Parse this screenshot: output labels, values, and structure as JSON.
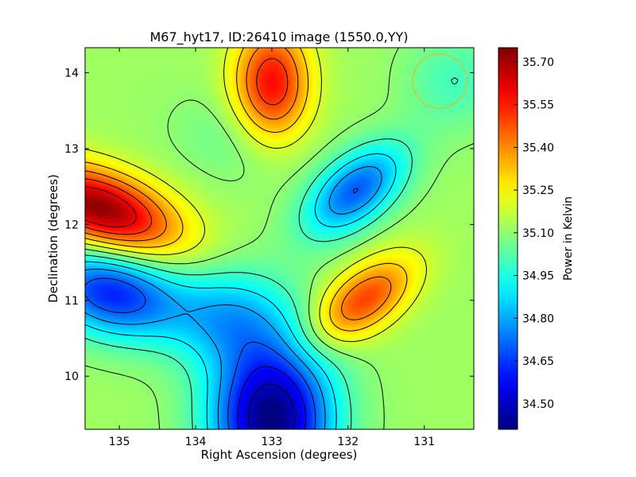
{
  "chart_data": {
    "type": "heatmap",
    "title": "M67_hyt17, ID:26410 image (1550.0,YY)",
    "xlabel": "Right Ascension (degrees)",
    "ylabel": "Declination (degrees)",
    "xlim": [
      135.45,
      130.35
    ],
    "ylim": [
      9.3,
      14.33
    ],
    "x_ticks": [
      135,
      134,
      133,
      132,
      131
    ],
    "y_ticks": [
      10,
      11,
      12,
      13,
      14
    ],
    "x_tick_labels": [
      "135",
      "134",
      "133",
      "132",
      "131"
    ],
    "y_tick_labels": [
      "10",
      "11",
      "12",
      "13",
      "14"
    ],
    "colorbar": {
      "label": "Power in Kelvin",
      "range": [
        34.41,
        35.75
      ],
      "ticks": [
        34.5,
        34.65,
        34.8,
        34.95,
        35.1,
        35.25,
        35.4,
        35.55,
        35.7
      ],
      "tick_labels": [
        "34.50",
        "34.65",
        "34.80",
        "34.95",
        "35.10",
        "35.25",
        "35.40",
        "35.55",
        "35.70"
      ],
      "colormap": "jet"
    },
    "features": [
      {
        "kind": "max",
        "ra": 135.2,
        "dec": 12.2,
        "value": 35.72
      },
      {
        "kind": "max",
        "ra": 133.0,
        "dec": 13.8,
        "value": 35.56
      },
      {
        "kind": "max",
        "ra": 131.8,
        "dec": 11.0,
        "value": 35.47
      },
      {
        "kind": "min",
        "ra": 133.0,
        "dec": 9.5,
        "value": 34.42
      },
      {
        "kind": "min",
        "ra": 135.1,
        "dec": 11.1,
        "value": 34.64
      },
      {
        "kind": "min",
        "ra": 131.9,
        "dec": 12.4,
        "value": 34.71
      }
    ],
    "beam_marker": {
      "shape": "circle",
      "color": "#c8c832",
      "location": "top-right"
    },
    "grid": false
  }
}
